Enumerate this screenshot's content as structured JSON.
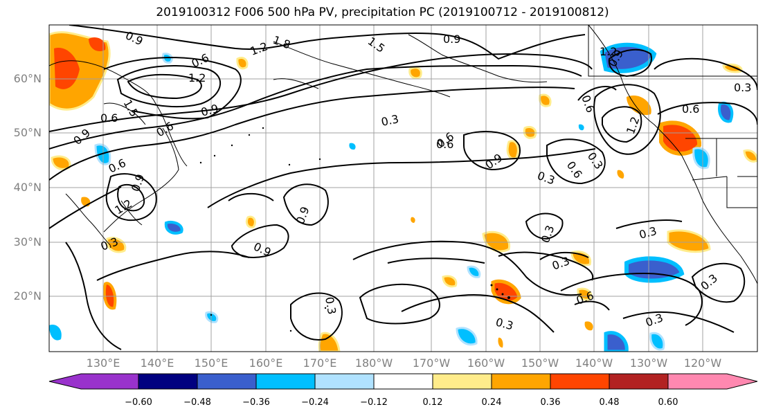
{
  "title": "2019100312 F006 500 hPa PV, precipitation PC (2019100712 - 2019100812)",
  "lat_labels": [
    "60°N",
    "50°N",
    "40°N",
    "30°N",
    "20°N"
  ],
  "lon_labels": [
    "130°E",
    "140°E",
    "150°E",
    "160°E",
    "170°E",
    "180°W",
    "170°W",
    "160°W",
    "150°W",
    "140°W",
    "130°W",
    "120°W"
  ],
  "colorbar": {
    "labels": [
      "−0.60",
      "−0.48",
      "−0.36",
      "−0.24",
      "−0.12",
      "0.12",
      "0.24",
      "0.36",
      "0.48",
      "0.60"
    ],
    "colors": [
      "#9932CC",
      "#000080",
      "#3A5FCD",
      "#00BFFF",
      "#B0E2FF",
      "#FFFFFF",
      "#FFEC8B",
      "#FFA500",
      "#FF4500",
      "#B22222",
      "#FF88B0"
    ]
  },
  "contour_labels": [
    "0.9",
    "1.8",
    "1.5",
    "0.9",
    "1.2",
    "0.6",
    "1.2",
    "1.5",
    "0.6",
    "0.9",
    "0.6",
    "0.9",
    "0.6",
    "1.2",
    "0.9",
    "0.3",
    "0.6",
    "0.9",
    "0.3",
    "0.6",
    "0.3",
    "0.9",
    "0.9",
    "0.3",
    "0.3",
    "0.3",
    "0.3",
    "0.6",
    "0.3",
    "0.3",
    "0.3",
    "1.2",
    "0.9",
    "0.6",
    "0.6",
    "0.3",
    "1.2",
    "0.3",
    "0.6"
  ],
  "colors": {
    "contour": "#000000",
    "grid": "#a0a0a0",
    "coast": "#000000",
    "axis_text": "#808080"
  }
}
